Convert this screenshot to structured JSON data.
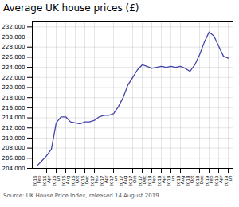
{
  "chart_data": {
    "type": "line",
    "title": "Average UK house prices (£)",
    "annotations": [
      "Source: UK House Price Index, released 14 August 2019"
    ],
    "categories": [
      "2016\nFeb",
      null,
      "2016\nApr",
      null,
      "2016\nJun",
      null,
      "2016\nAug",
      null,
      "2016\nOct",
      null,
      "2016\nDec",
      null,
      "2017\nFeb",
      null,
      "2017\nApr",
      null,
      "2017\nJun",
      null,
      "2017\nAug",
      null,
      "2017\nOct",
      null,
      "2017\nDec",
      null,
      "2018\nFeb",
      null,
      "2018\nApr",
      null,
      "2018\nJun",
      null,
      "2018\nAug",
      null,
      "2018\nOct",
      null,
      "2018\nDec",
      null,
      "2019\nFeb",
      null,
      "2019\nApr",
      null,
      "2019\nJun"
    ],
    "values": [
      204500,
      205500,
      206500,
      207800,
      213000,
      214200,
      214200,
      213200,
      213000,
      212800,
      213200,
      213200,
      213500,
      214200,
      214500,
      214500,
      214800,
      216200,
      218000,
      220500,
      222000,
      223500,
      224500,
      224200,
      223800,
      224000,
      224200,
      224000,
      224200,
      224000,
      224200,
      223800,
      223200,
      224500,
      226500,
      229000,
      231000,
      230200,
      228200,
      226200,
      225800
    ],
    "color": "#4444aa",
    "ylim": [
      204000,
      233000
    ],
    "yticks": [
      {
        "value": 204000,
        "label": "204.000"
      },
      {
        "value": 206000,
        "label": "206.000"
      },
      {
        "value": 208000,
        "label": "208.000"
      },
      {
        "value": 210000,
        "label": "210.000"
      },
      {
        "value": 212000,
        "label": "212.000"
      },
      {
        "value": 214000,
        "label": "214.000"
      },
      {
        "value": 216000,
        "label": "216.000"
      },
      {
        "value": 218000,
        "label": "218.000"
      },
      {
        "value": 220000,
        "label": "220.000"
      },
      {
        "value": 222000,
        "label": "222.000"
      },
      {
        "value": 224000,
        "label": "224.000"
      },
      {
        "value": 226000,
        "label": "226.000"
      },
      {
        "value": 228000,
        "label": "228.000"
      },
      {
        "value": 230000,
        "label": "230.000"
      },
      {
        "value": 232000,
        "label": "232.000"
      }
    ],
    "grid": true
  }
}
